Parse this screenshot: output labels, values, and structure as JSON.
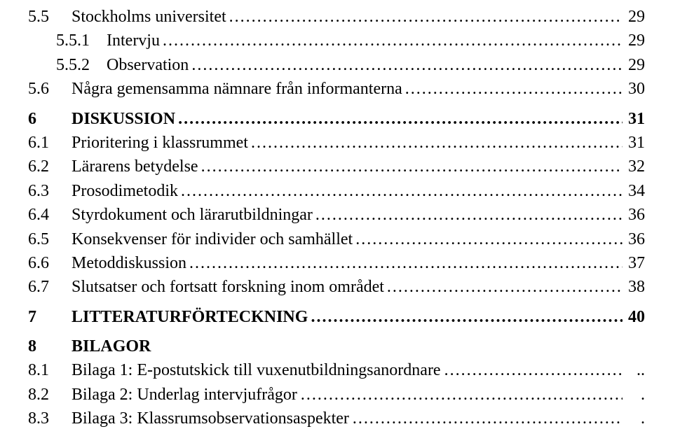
{
  "font_family": "Times New Roman",
  "font_size_pt": 18,
  "text_color": "#000000",
  "background_color": "#ffffff",
  "leader_style_dots": ".",
  "leader_style_ellipsis": "…",
  "entries": [
    {
      "num": "5.5",
      "title": "Stockholms universitet",
      "page": "29",
      "level": 1,
      "bold": false,
      "leader": "dots"
    },
    {
      "num": "5.5.1",
      "title": "Intervju",
      "page": "29",
      "level": 2,
      "bold": false,
      "leader": "dots"
    },
    {
      "num": "5.5.2",
      "title": "Observation",
      "page": "29",
      "level": 2,
      "bold": false,
      "leader": "dots"
    },
    {
      "num": "5.6",
      "title": "Några gemensamma nämnare från informanterna",
      "page": "30",
      "level": 1,
      "bold": false,
      "leader": "dots"
    },
    {
      "spacer": true
    },
    {
      "num": "6",
      "title": "DISKUSSION",
      "page": "31",
      "level": 1,
      "bold": true,
      "leader": "dots"
    },
    {
      "num": "6.1",
      "title": "Prioritering i klassrummet",
      "page": "31",
      "level": 1,
      "bold": false,
      "leader": "dots"
    },
    {
      "num": "6.2",
      "title": "Lärarens betydelse",
      "page": "32",
      "level": 1,
      "bold": false,
      "leader": "dots"
    },
    {
      "num": "6.3",
      "title": "Prosodimetodik",
      "page": "34",
      "level": 1,
      "bold": false,
      "leader": "dots"
    },
    {
      "num": "6.4",
      "title": "Styrdokument och lärarutbildningar",
      "page": "36",
      "level": 1,
      "bold": false,
      "leader": "dots"
    },
    {
      "num": "6.5",
      "title": "Konsekvenser för individer och samhället",
      "page": "36",
      "level": 1,
      "bold": false,
      "leader": "dots"
    },
    {
      "num": "6.6",
      "title": "Metoddiskussion",
      "page": "37",
      "level": 1,
      "bold": false,
      "leader": "dots"
    },
    {
      "num": "6.7",
      "title": "Slutsatser och fortsatt forskning inom området",
      "page": "38",
      "level": 1,
      "bold": false,
      "leader": "dots"
    },
    {
      "spacer": true
    },
    {
      "num": "7",
      "title": "LITTERATURFÖRTECKNING",
      "page": "40",
      "level": 1,
      "bold": true,
      "leader": "dots"
    },
    {
      "spacer": true
    },
    {
      "num": "8",
      "title": "BILAGOR",
      "page": "",
      "level": 1,
      "bold": true,
      "leader": "none"
    },
    {
      "num": "8.1",
      "title": "Bilaga 1: E-postutskick till vuxenutbildningsanordnare",
      "page": "",
      "level": 1,
      "bold": false,
      "leader": "ellipsis",
      "trail": ".."
    },
    {
      "num": "8.2",
      "title": "Bilaga 2: Underlag intervjufrågor",
      "page": "",
      "level": 1,
      "bold": false,
      "leader": "ellipsis",
      "trail": "."
    },
    {
      "num": "8.3",
      "title": "Bilaga 3: Klassrumsobservationsaspekter",
      "page": "",
      "level": 1,
      "bold": false,
      "leader": "ellipsis",
      "trail": "."
    }
  ]
}
